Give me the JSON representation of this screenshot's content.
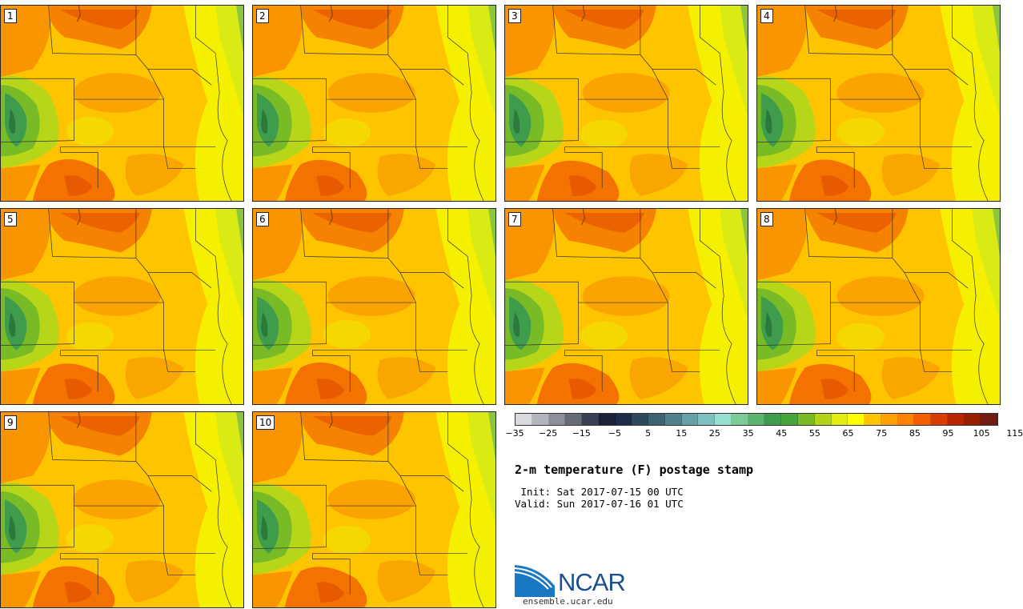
{
  "product": {
    "title": "2-m temperature (F) postage stamp",
    "init_line": " Init: Sat 2017-07-15 00 UTC",
    "valid_line": "Valid: Sun 2017-07-16 01 UTC"
  },
  "members": [
    "1",
    "2",
    "3",
    "4",
    "5",
    "6",
    "7",
    "8",
    "9",
    "10"
  ],
  "colorbar": {
    "colors": [
      "#d9dbe0",
      "#b3b6bd",
      "#8d909a",
      "#676b78",
      "#3a3f52",
      "#1b2238",
      "#1d2c47",
      "#2b4a5c",
      "#3e6473",
      "#52808b",
      "#67a0a6",
      "#7fc0c0",
      "#95e0d0",
      "#7ccc97",
      "#5bb56f",
      "#3f9c4c",
      "#47a43a",
      "#79bb26",
      "#b1d418",
      "#e3ee0f",
      "#ffff00",
      "#ffc500",
      "#ffa100",
      "#ff8200",
      "#f45e00",
      "#d83c00",
      "#b82600",
      "#962000",
      "#711d12"
    ],
    "tick_labels": [
      "−35",
      "−25",
      "−15",
      "−5",
      "5",
      "15",
      "25",
      "35",
      "45",
      "55",
      "65",
      "75",
      "85",
      "95",
      "105",
      "115"
    ]
  },
  "branding": {
    "logo_text": "NCAR",
    "url": "ensemble.ucar.edu"
  }
}
